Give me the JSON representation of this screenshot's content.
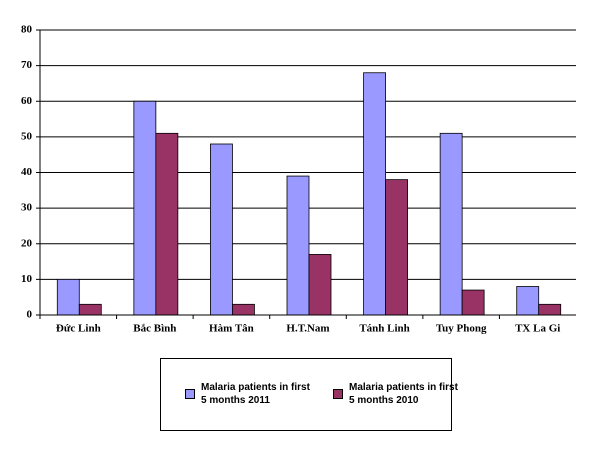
{
  "chart_data": {
    "type": "bar",
    "categories": [
      "Đức Linh",
      "Bắc Bình",
      "Hàm Tân",
      "H.T.Nam",
      "Tánh Linh",
      "Tuy Phong",
      "TX La Gi"
    ],
    "series": [
      {
        "name": "Malaria patients in first 5 months 2011",
        "color": "#9999ff",
        "values": [
          10,
          60,
          48,
          39,
          68,
          51,
          8
        ]
      },
      {
        "name": "Malaria patients in first 5 months 2010",
        "color": "#993366",
        "values": [
          3,
          51,
          3,
          17,
          38,
          7,
          3
        ]
      }
    ],
    "ylim": [
      0,
      80
    ],
    "yticks": [
      0,
      10,
      20,
      30,
      40,
      50,
      60,
      70,
      80
    ],
    "grid": true,
    "legend": "bottom"
  }
}
